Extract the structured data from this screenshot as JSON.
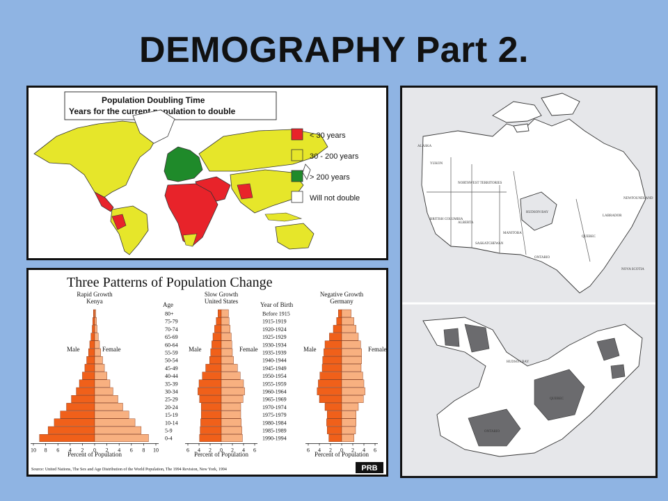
{
  "slide": {
    "title": "DEMOGRAPHY Part 2."
  },
  "doubling_map": {
    "title": "Population Doubling Time",
    "subtitle": "Years for the current population to double",
    "legend": [
      {
        "label": "< 30 years",
        "color": "#e8232a"
      },
      {
        "label": "30 - 200 years",
        "color": "#e6e62a"
      },
      {
        "label": "> 200 years",
        "color": "#1f8a2a"
      },
      {
        "label": "Will not double",
        "color": "#ffffff"
      }
    ]
  },
  "pyramids": {
    "title": "Three Patterns of Population Change",
    "kenya": {
      "label1": "Rapid Growth",
      "label2": "Kenya",
      "axis": "Percent of Population",
      "ticks": [
        "10",
        "8",
        "6",
        "4",
        "2",
        "0",
        "2",
        "4",
        "6",
        "8",
        "10"
      ]
    },
    "us": {
      "label1": "Slow Growth",
      "label2": "United States",
      "axis": "Percent of Population",
      "ticks": [
        "6",
        "4",
        "2",
        "0",
        "2",
        "4",
        "6"
      ]
    },
    "germany": {
      "label1": "Negative Growth",
      "label2": "Germany",
      "axis": "Percent of Population",
      "ticks": [
        "6",
        "4",
        "2",
        "0",
        "2",
        "4",
        "6"
      ]
    },
    "male": "Male",
    "female": "Female",
    "age_header": "Age",
    "birth_header": "Year of Birth",
    "ages": [
      "80+",
      "75-79",
      "70-74",
      "65-69",
      "60-64",
      "55-59",
      "50-54",
      "45-49",
      "40-44",
      "35-39",
      "30-34",
      "25-29",
      "20-24",
      "15-19",
      "10-14",
      "5-9",
      "0-4"
    ],
    "birth_years": [
      "Before 1915",
      "1915-1919",
      "1920-1924",
      "1925-1929",
      "1930-1934",
      "1935-1939",
      "1940-1944",
      "1945-1949",
      "1950-1954",
      "1955-1959",
      "1960-1964",
      "1965-1969",
      "1970-1974",
      "1975-1979",
      "1980-1984",
      "1985-1989",
      "1990-1994"
    ],
    "source": "Source: United Nations, The Sex and Age Distribution of the World Population, The 1994 Revision, New York, 1994",
    "logo": "PRB",
    "male_color": "#f0601a",
    "female_color": "#f8b080"
  },
  "canada_maps": {
    "top_labels": [
      "ALASKA",
      "YUKON",
      "NORTHWEST TERRITORIES",
      "HUDSON BAY",
      "BRITISH COLUMBIA",
      "ALBERTA",
      "SASKATCHEWAN",
      "MANITOBA",
      "ONTARIO",
      "QUEBEC",
      "LABRADOR",
      "NEWFOUNDLAND",
      "NOVA SCOTIA"
    ],
    "bottom_labels": [
      "HUDSON BAY",
      "QUEBEC",
      "ONTARIO"
    ]
  }
}
